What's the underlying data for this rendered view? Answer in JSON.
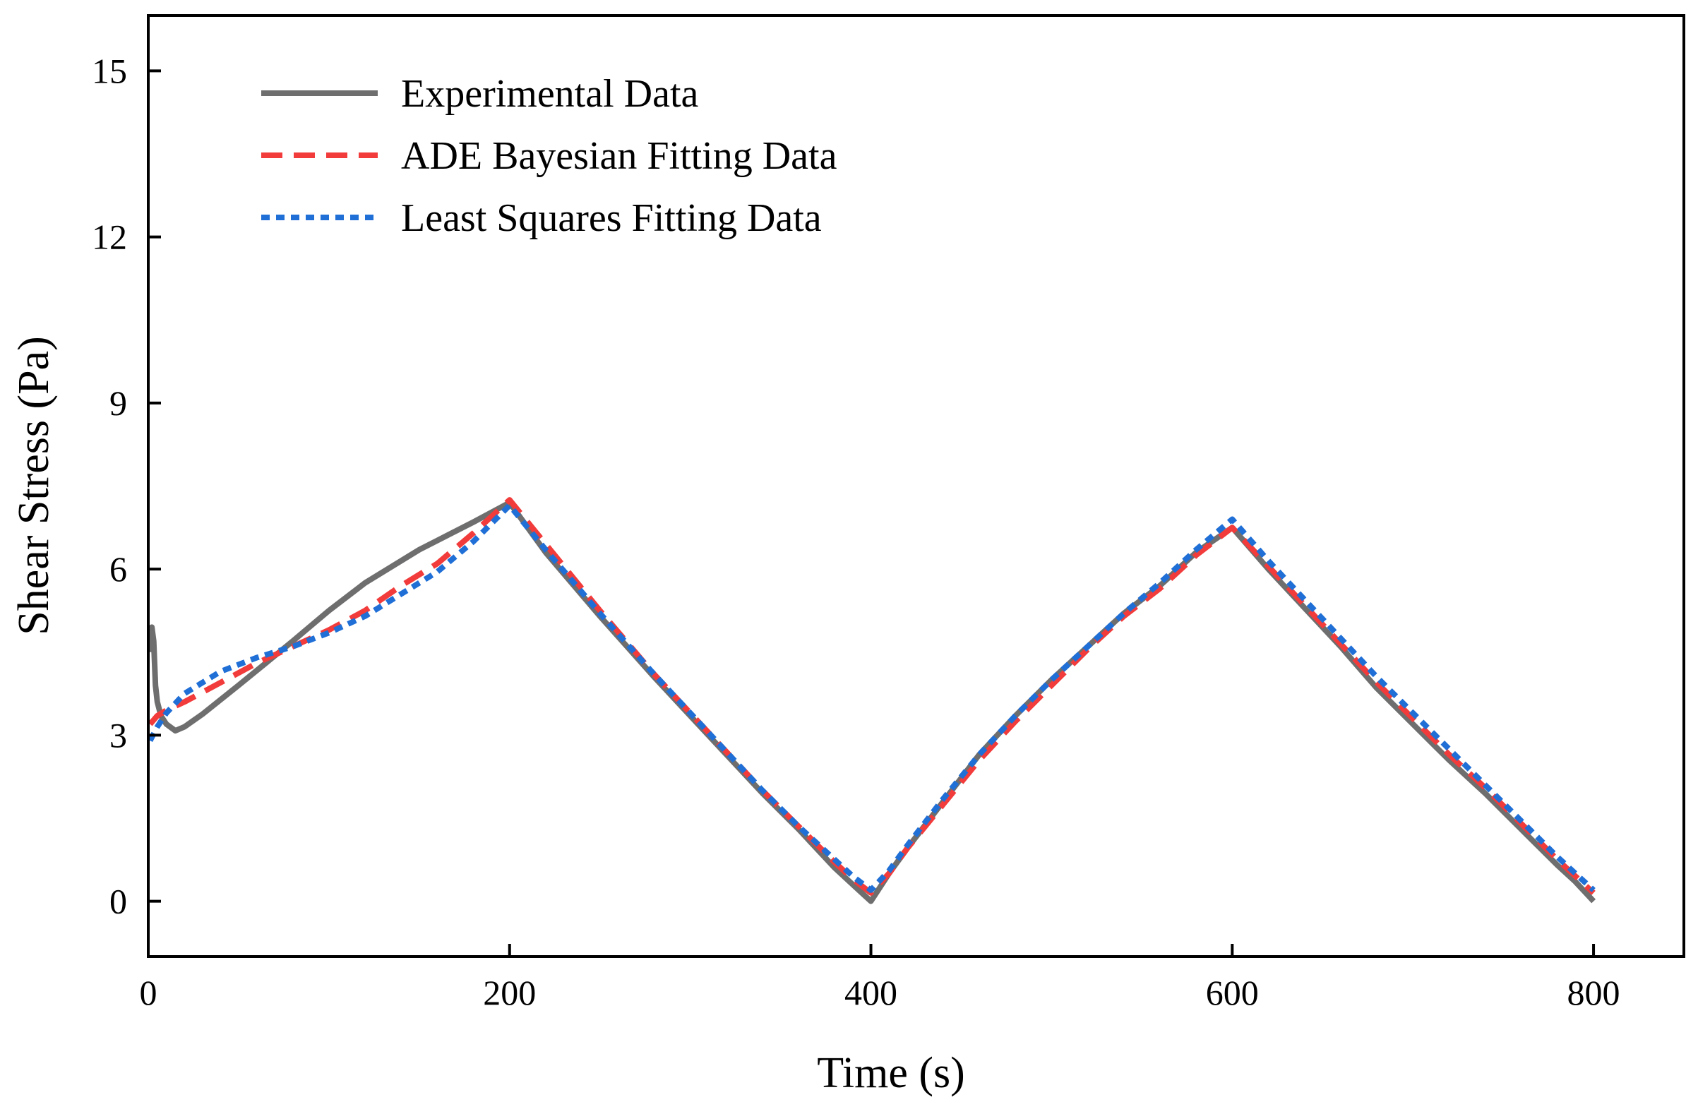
{
  "chart_data": {
    "type": "line",
    "title": "",
    "xlabel": "Time (s)",
    "ylabel": "Shear Stress (Pa)",
    "xlim": [
      0,
      850
    ],
    "ylim": [
      -1,
      16
    ],
    "xticks": [
      0,
      200,
      400,
      600,
      800
    ],
    "yticks": [
      0,
      3,
      6,
      9,
      12,
      15
    ],
    "xtick_labels": [
      "0",
      "200",
      "400",
      "600",
      "800"
    ],
    "ytick_labels": [
      "0",
      "3",
      "6",
      "9",
      "12",
      "15"
    ],
    "grid": false,
    "legend_position": "top-left",
    "series": [
      {
        "name": "Experimental Data",
        "color": "#6e6e6e",
        "style": "solid",
        "x": [
          1,
          2,
          3,
          4,
          5,
          7,
          10,
          15,
          20,
          30,
          50,
          80,
          100,
          120,
          150,
          180,
          200,
          220,
          250,
          280,
          300,
          320,
          340,
          360,
          380,
          390,
          400,
          410,
          420,
          440,
          460,
          480,
          500,
          520,
          540,
          560,
          580,
          600,
          620,
          640,
          660,
          680,
          700,
          720,
          740,
          760,
          780,
          790,
          800
        ],
        "y": [
          4.5,
          4.95,
          4.7,
          3.9,
          3.6,
          3.35,
          3.2,
          3.08,
          3.15,
          3.38,
          3.9,
          4.7,
          5.25,
          5.75,
          6.35,
          6.85,
          7.2,
          6.3,
          5.15,
          4.05,
          3.35,
          2.65,
          1.95,
          1.3,
          0.6,
          0.3,
          0.0,
          0.5,
          0.95,
          1.8,
          2.65,
          3.35,
          4.0,
          4.6,
          5.2,
          5.7,
          6.3,
          6.75,
          6.0,
          5.3,
          4.6,
          3.85,
          3.2,
          2.55,
          1.95,
          1.3,
          0.65,
          0.35,
          0.0
        ]
      },
      {
        "name": "ADE Bayesian Fitting Data",
        "color": "#f23b3b",
        "style": "dashed",
        "x": [
          1,
          5,
          10,
          20,
          40,
          60,
          80,
          100,
          120,
          140,
          160,
          180,
          200,
          220,
          250,
          280,
          300,
          320,
          340,
          360,
          380,
          390,
          400,
          410,
          420,
          440,
          460,
          480,
          500,
          520,
          540,
          560,
          580,
          600,
          620,
          640,
          660,
          680,
          700,
          720,
          740,
          760,
          780,
          790,
          800
        ],
        "y": [
          3.2,
          3.35,
          3.45,
          3.6,
          3.95,
          4.3,
          4.6,
          4.9,
          5.25,
          5.7,
          6.1,
          6.65,
          7.25,
          6.45,
          5.25,
          4.1,
          3.4,
          2.7,
          2.0,
          1.35,
          0.7,
          0.4,
          0.15,
          0.5,
          0.95,
          1.75,
          2.55,
          3.25,
          3.9,
          4.55,
          5.15,
          5.65,
          6.25,
          6.75,
          6.05,
          5.35,
          4.65,
          3.95,
          3.3,
          2.65,
          2.05,
          1.4,
          0.75,
          0.45,
          0.15
        ]
      },
      {
        "name": "Least Squares Fitting Data",
        "color": "#1f6fd6",
        "style": "dotted",
        "x": [
          1,
          5,
          10,
          20,
          40,
          60,
          80,
          100,
          120,
          140,
          160,
          180,
          200,
          220,
          250,
          280,
          300,
          320,
          340,
          360,
          380,
          390,
          400,
          410,
          420,
          440,
          460,
          480,
          500,
          520,
          540,
          560,
          580,
          600,
          620,
          640,
          660,
          680,
          700,
          720,
          740,
          760,
          780,
          790,
          800
        ],
        "y": [
          2.9,
          3.15,
          3.4,
          3.75,
          4.15,
          4.4,
          4.6,
          4.85,
          5.15,
          5.55,
          5.95,
          6.5,
          7.15,
          6.35,
          5.2,
          4.1,
          3.4,
          2.7,
          2.0,
          1.35,
          0.75,
          0.45,
          0.2,
          0.55,
          1.0,
          1.85,
          2.65,
          3.35,
          4.0,
          4.6,
          5.2,
          5.75,
          6.35,
          6.9,
          6.15,
          5.45,
          4.75,
          4.05,
          3.4,
          2.75,
          2.1,
          1.45,
          0.8,
          0.5,
          0.2
        ]
      }
    ]
  }
}
